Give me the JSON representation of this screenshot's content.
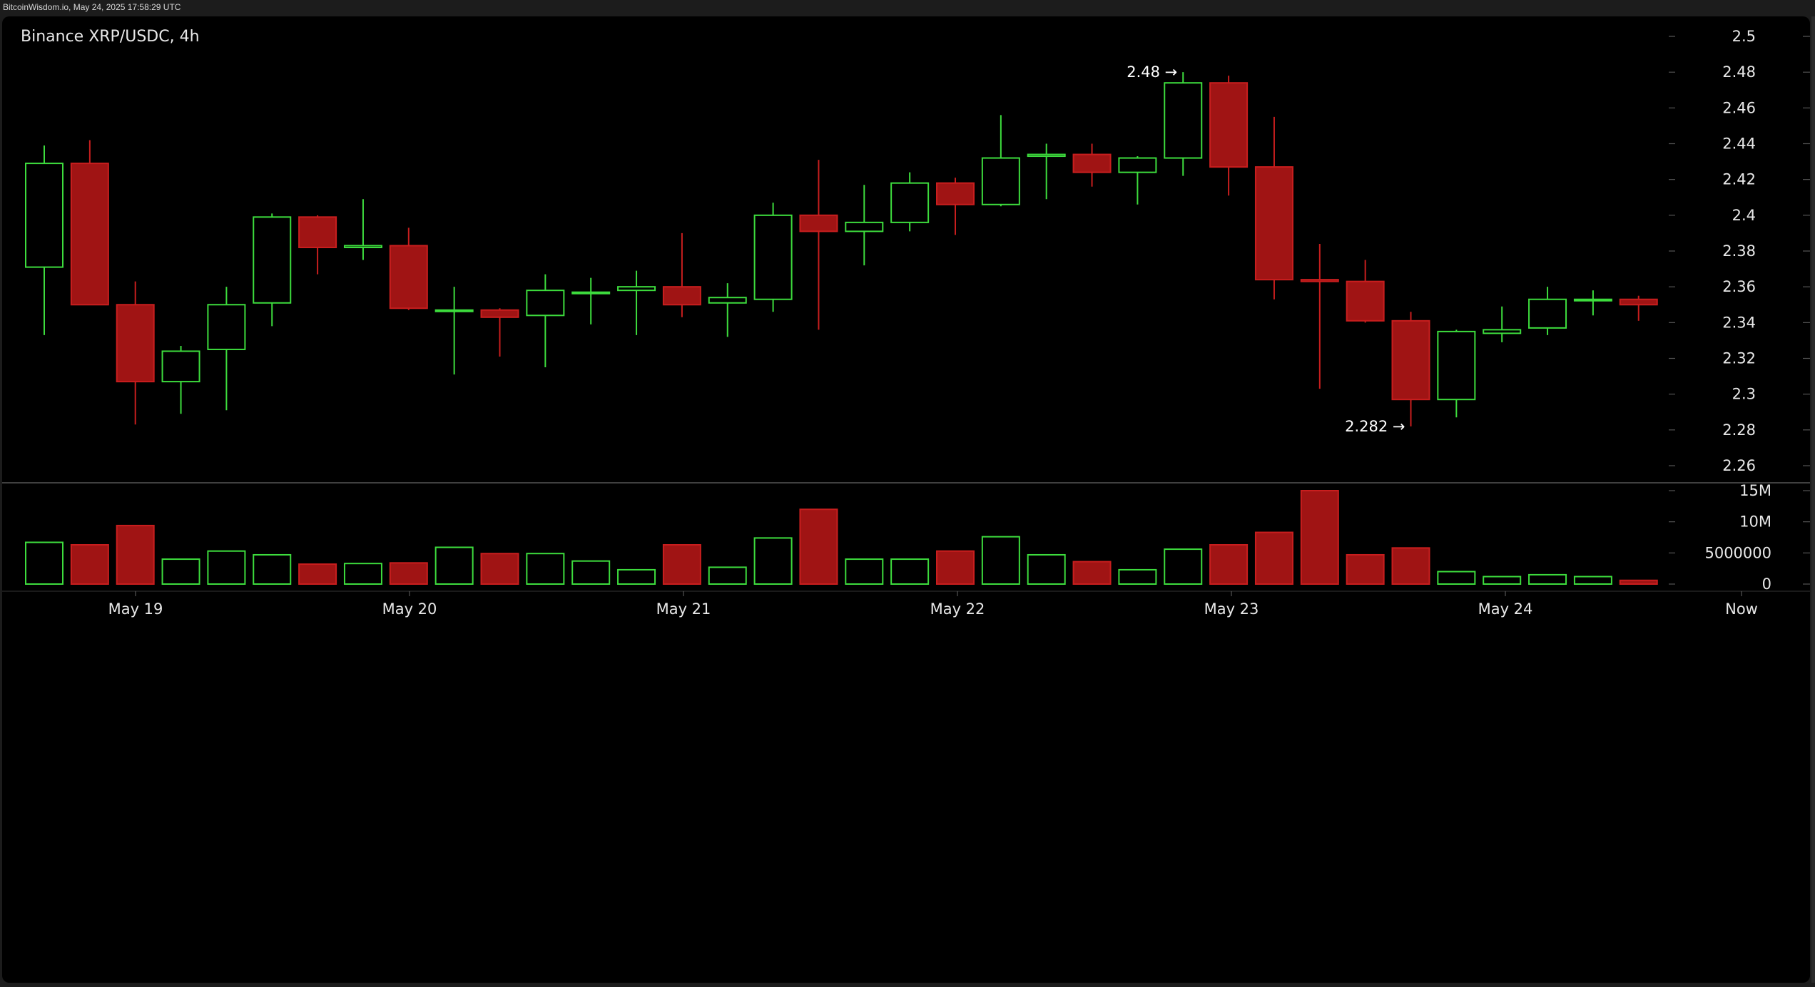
{
  "watermark": "BitcoinWisdom.io, May 24, 2025 17:58:29 UTC",
  "chart_title": "Binance XRP/USDC, 4h",
  "colors": {
    "background": "#000000",
    "up": "#3ddc3d",
    "down": "#a01414",
    "down_border": "#c81e1e",
    "text": "#e8e8e8",
    "axis_tick": "#555555"
  },
  "annotations": {
    "high_label": "2.48 →",
    "low_label": "2.282 →"
  },
  "chart_data": [
    {
      "type": "candlestick",
      "title": "Binance XRP/USDC, 4h",
      "y_axis": {
        "position": "right",
        "ylim": [
          2.25,
          2.5
        ],
        "ticks": [
          "2.5",
          "2.48",
          "2.46",
          "2.44",
          "2.42",
          "2.4",
          "2.38",
          "2.36",
          "2.34",
          "2.32",
          "2.3",
          "2.28",
          "2.26"
        ]
      },
      "x_axis": {
        "tick_labels": [
          "May 19",
          "May 20",
          "May 21",
          "May 22",
          "May 23",
          "May 24",
          "Now"
        ]
      },
      "grid": false,
      "annotations": [
        {
          "text": "2.48 →",
          "value": 2.48
        },
        {
          "text": "2.282 →",
          "value": 2.282
        }
      ],
      "series": [
        {
          "candles": [
            {
              "open": 2.371,
              "high": 2.439,
              "low": 2.333,
              "close": 2.429
            },
            {
              "open": 2.429,
              "high": 2.442,
              "low": 2.35,
              "close": 2.35
            },
            {
              "open": 2.35,
              "high": 2.363,
              "low": 2.283,
              "close": 2.307
            },
            {
              "open": 2.307,
              "high": 2.327,
              "low": 2.289,
              "close": 2.324
            },
            {
              "open": 2.325,
              "high": 2.36,
              "low": 2.291,
              "close": 2.35
            },
            {
              "open": 2.351,
              "high": 2.401,
              "low": 2.338,
              "close": 2.399
            },
            {
              "open": 2.399,
              "high": 2.4,
              "low": 2.367,
              "close": 2.382
            },
            {
              "open": 2.382,
              "high": 2.409,
              "low": 2.375,
              "close": 2.383
            },
            {
              "open": 2.383,
              "high": 2.393,
              "low": 2.347,
              "close": 2.348
            },
            {
              "open": 2.347,
              "high": 2.36,
              "low": 2.311,
              "close": 2.347
            },
            {
              "open": 2.347,
              "high": 2.348,
              "low": 2.321,
              "close": 2.343
            },
            {
              "open": 2.344,
              "high": 2.367,
              "low": 2.315,
              "close": 2.358
            },
            {
              "open": 2.357,
              "high": 2.365,
              "low": 2.339,
              "close": 2.357
            },
            {
              "open": 2.358,
              "high": 2.369,
              "low": 2.333,
              "close": 2.36
            },
            {
              "open": 2.36,
              "high": 2.39,
              "low": 2.343,
              "close": 2.35
            },
            {
              "open": 2.351,
              "high": 2.362,
              "low": 2.332,
              "close": 2.354
            },
            {
              "open": 2.353,
              "high": 2.407,
              "low": 2.346,
              "close": 2.4
            },
            {
              "open": 2.4,
              "high": 2.431,
              "low": 2.336,
              "close": 2.391
            },
            {
              "open": 2.391,
              "high": 2.417,
              "low": 2.372,
              "close": 2.396
            },
            {
              "open": 2.396,
              "high": 2.424,
              "low": 2.391,
              "close": 2.418
            },
            {
              "open": 2.418,
              "high": 2.421,
              "low": 2.389,
              "close": 2.406
            },
            {
              "open": 2.406,
              "high": 2.456,
              "low": 2.405,
              "close": 2.432
            },
            {
              "open": 2.433,
              "high": 2.44,
              "low": 2.409,
              "close": 2.434
            },
            {
              "open": 2.434,
              "high": 2.44,
              "low": 2.416,
              "close": 2.424
            },
            {
              "open": 2.424,
              "high": 2.433,
              "low": 2.406,
              "close": 2.432
            },
            {
              "open": 2.432,
              "high": 2.48,
              "low": 2.422,
              "close": 2.474
            },
            {
              "open": 2.474,
              "high": 2.478,
              "low": 2.411,
              "close": 2.427
            },
            {
              "open": 2.427,
              "high": 2.455,
              "low": 2.353,
              "close": 2.364
            },
            {
              "open": 2.364,
              "high": 2.384,
              "low": 2.303,
              "close": 2.363
            },
            {
              "open": 2.363,
              "high": 2.375,
              "low": 2.34,
              "close": 2.341
            },
            {
              "open": 2.341,
              "high": 2.346,
              "low": 2.282,
              "close": 2.297
            },
            {
              "open": 2.297,
              "high": 2.336,
              "low": 2.287,
              "close": 2.335
            },
            {
              "open": 2.334,
              "high": 2.349,
              "low": 2.329,
              "close": 2.336
            },
            {
              "open": 2.337,
              "high": 2.36,
              "low": 2.333,
              "close": 2.353
            },
            {
              "open": 2.353,
              "high": 2.358,
              "low": 2.344,
              "close": 2.353
            },
            {
              "open": 2.353,
              "high": 2.355,
              "low": 2.341,
              "close": 2.35
            }
          ]
        }
      ]
    },
    {
      "type": "bar",
      "title": "",
      "y_axis": {
        "position": "right",
        "ylim": [
          0,
          15000000
        ],
        "ticks": [
          "15M",
          "10M",
          "5000000",
          "0"
        ]
      },
      "grid": false,
      "series": [
        {
          "values": [
            6700000,
            6300000,
            9400000,
            4000000,
            5300000,
            4700000,
            3200000,
            3300000,
            3400000,
            5900000,
            4900000,
            4900000,
            3700000,
            2300000,
            6300000,
            2700000,
            7400000,
            12000000,
            4000000,
            4000000,
            5300000,
            7600000,
            4700000,
            3600000,
            2300000,
            5600000,
            6300000,
            8300000,
            15000000,
            4700000,
            5800000,
            2000000,
            1200000,
            1500000,
            1200000,
            600000
          ]
        }
      ]
    }
  ]
}
